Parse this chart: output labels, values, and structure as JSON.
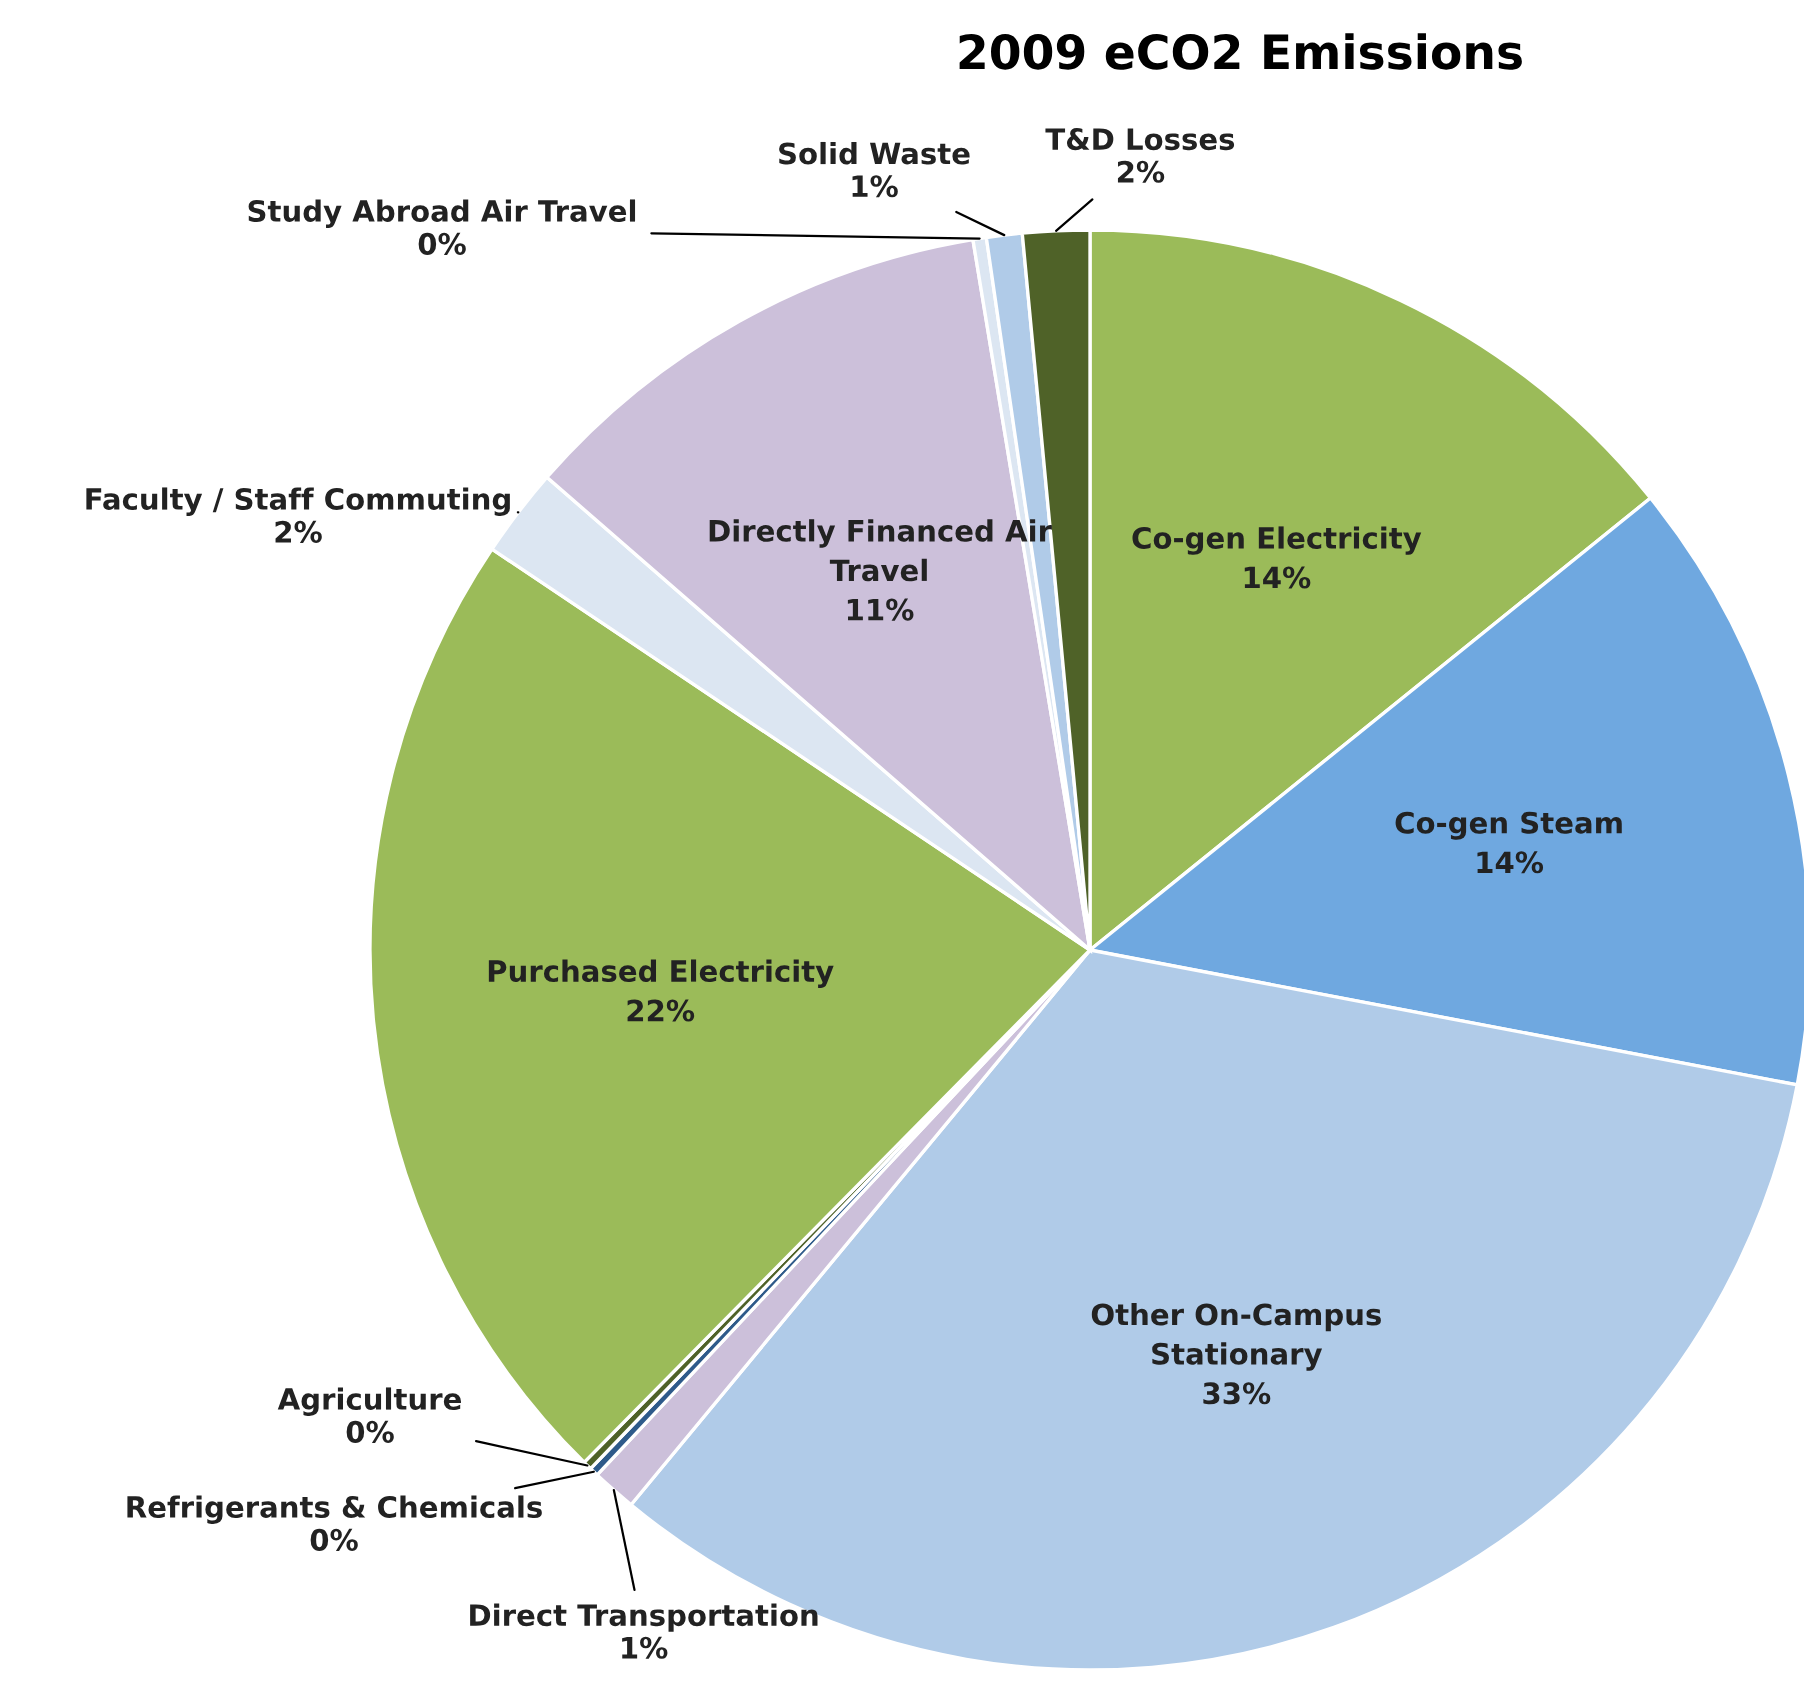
{
  "chart_data": {
    "type": "pie",
    "title": "2009 eCO2 Emissions",
    "categories": [
      "Co-gen Electricity",
      "Co-gen Steam",
      "Other On-Campus\nStationary",
      "Direct Transportation",
      "Refrigerants & Chemicals",
      "Agriculture",
      "Purchased Electricity",
      "Faculty / Staff Commuting",
      "Directly Financed Air\nTravel",
      "Study Abroad Air Travel",
      "Solid Waste",
      "T&D Losses"
    ],
    "values": [
      14.2,
      13.8,
      33.0,
      1.0,
      0.2,
      0.2,
      22.0,
      2.0,
      11.0,
      0.3,
      0.8,
      1.5
    ],
    "value_labels": [
      "14%",
      "14%",
      "33%",
      "1%",
      "0%",
      "0%",
      "22%",
      "2%",
      "11%",
      "0%",
      "1%",
      "2%"
    ],
    "colors": [
      "#9bbb59",
      "#6fa8e0",
      "#b0cbe8",
      "#ccc0da",
      "#2e5a8a",
      "#4f6228",
      "#9bbb59",
      "#dce6f2",
      "#ccc0da",
      "#dce6f2",
      "#b0cbe8",
      "#4f6228"
    ],
    "legend": false
  }
}
